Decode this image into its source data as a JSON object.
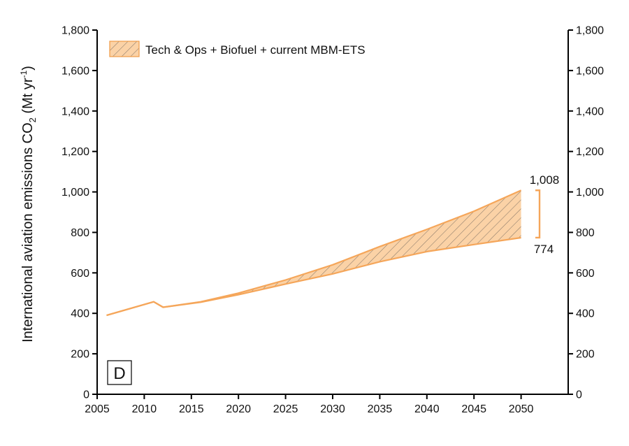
{
  "chart_data": {
    "type": "area",
    "title": "",
    "xlabel": "",
    "ylabel": {
      "main": "International aviation emissions CO",
      "sub": "2",
      "unit_open": " (Mt yr",
      "sup": "-1",
      "unit_close": ")"
    },
    "xlim": [
      2005,
      2055
    ],
    "ylim": [
      0,
      1800
    ],
    "x_ticks": [
      2005,
      2010,
      2015,
      2020,
      2025,
      2030,
      2035,
      2040,
      2045,
      2050
    ],
    "x_tick_labels": [
      "2005",
      "2010",
      "2015",
      "2020",
      "2025",
      "2030",
      "2035",
      "2040",
      "2045",
      "2050"
    ],
    "y_ticks": [
      0,
      200,
      400,
      600,
      800,
      1000,
      1200,
      1400,
      1600,
      1800
    ],
    "y_tick_labels": [
      "0",
      "200",
      "400",
      "600",
      "800",
      "1,000",
      "1,200",
      "1,400",
      "1,600",
      "1,800"
    ],
    "right_axis_mirrors_left": true,
    "grid": false,
    "series": [
      {
        "name": "Tech & Ops + Biofuel + current MBM-ETS",
        "fill": "hatched",
        "color": "#f5a65a",
        "fill_color": "#fbd2a6",
        "x": [
          2006,
          2011,
          2012,
          2016,
          2020,
          2025,
          2030,
          2035,
          2040,
          2045,
          2050
        ],
        "upper": [
          390,
          457,
          430,
          457,
          500,
          565,
          640,
          730,
          815,
          905,
          1008
        ],
        "lower": [
          390,
          457,
          430,
          455,
          492,
          545,
          595,
          655,
          705,
          740,
          774
        ]
      }
    ],
    "annotations": {
      "range_upper_label": "1,008",
      "range_lower_label": "774",
      "range_upper": 1008,
      "range_lower": 774,
      "panel_label": "D"
    },
    "legend": {
      "placement": "top-left",
      "entries": [
        "Tech & Ops + Biofuel + current MBM-ETS"
      ]
    }
  }
}
